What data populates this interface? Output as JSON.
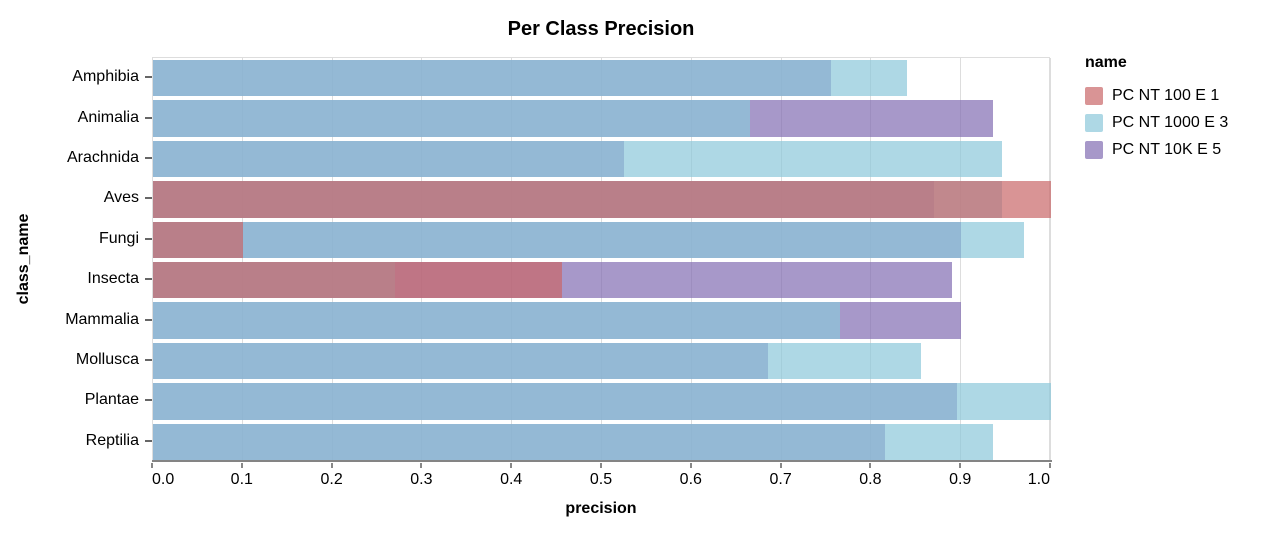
{
  "chart_data": {
    "type": "bar",
    "orientation": "horizontal",
    "layered": true,
    "title": "Per Class Precision",
    "xlabel": "precision",
    "ylabel": "class_name",
    "xlim": [
      0,
      1.0
    ],
    "xtick_labels": [
      "0.0",
      "0.1",
      "0.2",
      "0.3",
      "0.4",
      "0.5",
      "0.6",
      "0.7",
      "0.8",
      "0.9",
      "1.0"
    ],
    "grid": true,
    "legend_title": "name",
    "legend_position": "right",
    "bar_opacity": 0.7,
    "categories": [
      "Amphibia",
      "Animalia",
      "Arachnida",
      "Aves",
      "Fungi",
      "Insecta",
      "Mammalia",
      "Mollusca",
      "Plantae",
      "Reptilia"
    ],
    "series": [
      {
        "name": "PC NT 100 E 1",
        "fill": "rgba(201,102,104,0.7)",
        "values": [
          null,
          null,
          null,
          1.0,
          0.1,
          0.455,
          null,
          null,
          null,
          null
        ]
      },
      {
        "name": "PC NT 1000 E 3",
        "fill": "rgba(139,199,218,0.7)",
        "values": [
          0.84,
          0.665,
          0.945,
          0.945,
          0.97,
          0.27,
          0.765,
          0.855,
          1.0,
          0.935
        ]
      },
      {
        "name": "PC NT 10K E 5",
        "fill": "rgba(129,108,178,0.7)",
        "values": [
          0.755,
          0.935,
          0.525,
          0.87,
          0.9,
          0.89,
          0.9,
          0.685,
          0.895,
          0.815
        ]
      }
    ],
    "blend_colors": {
      "lightblue_over_purple": "#93B9D5",
      "red_over_all": "#B87F89",
      "red_over_purple": "#BF7585",
      "red_over_lightblue": "#C0888D"
    },
    "axis_colors": {
      "grid": "#dddddd",
      "domain": "#848484",
      "tick": "#666666",
      "label": "#000000",
      "view_border": "#dddddd"
    }
  }
}
